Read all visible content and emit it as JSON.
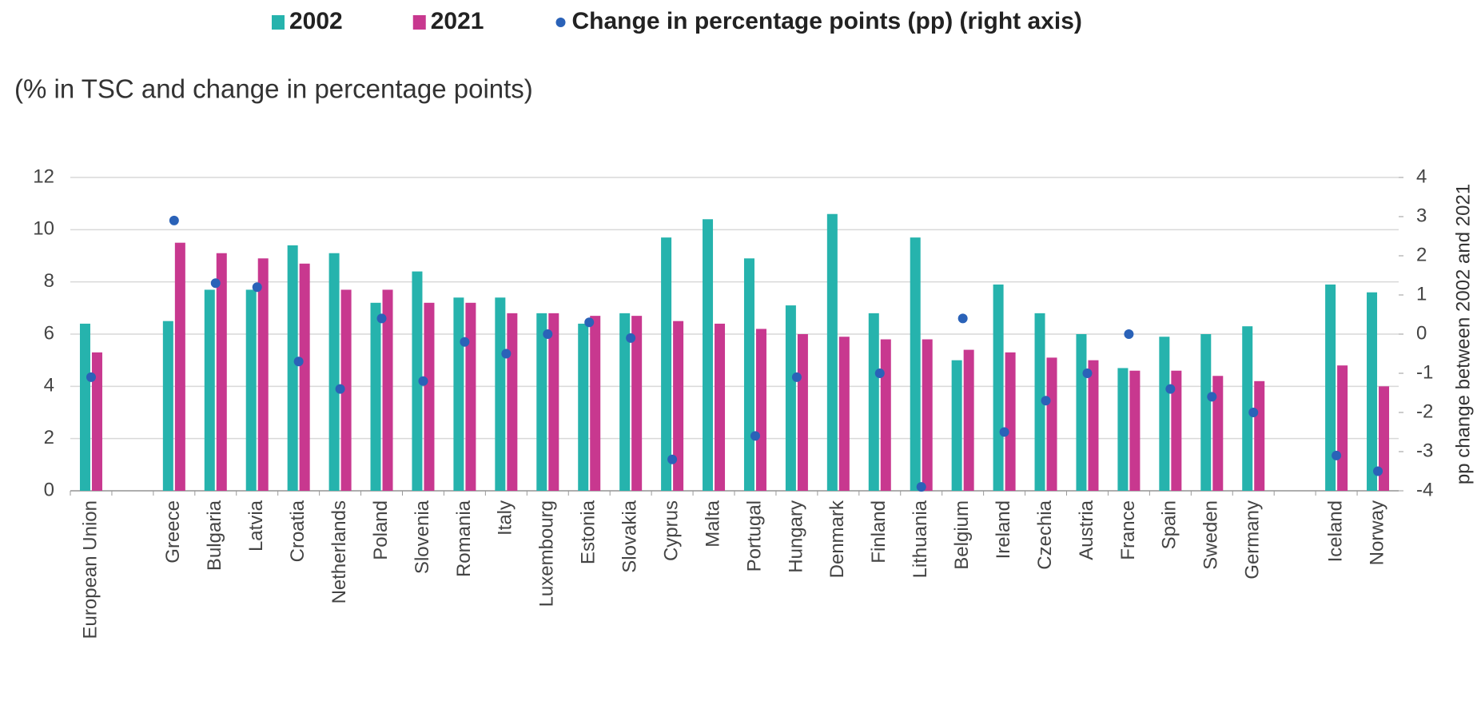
{
  "chart_data": {
    "type": "bar",
    "subtitle": "(% in TSC and change in percentage points)",
    "y2label": "pp change between 2002 and 2021",
    "categories": [
      "European Union",
      null,
      "Greece",
      "Bulgaria",
      "Latvia",
      "Croatia",
      "Netherlands",
      "Poland",
      "Slovenia",
      "Romania",
      "Italy",
      "Luxembourg",
      "Estonia",
      "Slovakia",
      "Cyprus",
      "Malta",
      "Portugal",
      "Hungary",
      "Denmark",
      "Finland",
      "Lithuania",
      "Belgium",
      "Ireland",
      "Czechia",
      "Austria",
      "France",
      "Spain",
      "Sweden",
      "Germany",
      null,
      "Iceland",
      "Norway"
    ],
    "series": [
      {
        "name": "2002",
        "color": "#26b3ad",
        "values": [
          6.4,
          null,
          6.5,
          7.7,
          7.7,
          9.4,
          9.1,
          7.2,
          8.4,
          7.4,
          7.4,
          6.8,
          6.4,
          6.8,
          9.7,
          10.4,
          8.9,
          7.1,
          10.6,
          6.8,
          9.7,
          5.0,
          7.9,
          6.8,
          6.0,
          4.7,
          5.9,
          6.0,
          6.3,
          null,
          7.9,
          7.6
        ]
      },
      {
        "name": "2021",
        "color": "#c8388f",
        "values": [
          5.3,
          null,
          9.5,
          9.1,
          8.9,
          8.7,
          7.7,
          7.7,
          7.2,
          7.2,
          6.8,
          6.8,
          6.7,
          6.7,
          6.5,
          6.4,
          6.2,
          6.0,
          5.9,
          5.8,
          5.8,
          5.4,
          5.3,
          5.1,
          5.0,
          4.6,
          4.6,
          4.4,
          4.2,
          null,
          4.8,
          4.0
        ]
      },
      {
        "name": "Change in percentage points (pp) (right axis)",
        "color": "#2a62b8",
        "axis": "y2",
        "values": [
          -1.1,
          null,
          2.9,
          1.3,
          1.2,
          -0.7,
          -1.4,
          0.4,
          -1.2,
          -0.2,
          -0.5,
          0.0,
          0.3,
          -0.1,
          -3.2,
          null,
          -2.6,
          -1.1,
          null,
          -1.0,
          -3.9,
          0.4,
          -2.5,
          -1.7,
          -1.0,
          0.0,
          -1.4,
          -1.6,
          -2.0,
          null,
          -3.1,
          -3.5
        ]
      }
    ],
    "ylim": [
      0,
      12
    ],
    "yticks": [
      0,
      2,
      4,
      6,
      8,
      10,
      12
    ],
    "y2lim": [
      -4,
      4
    ],
    "y2ticks": [
      -4,
      -3,
      -2,
      -1,
      0,
      1,
      2,
      3,
      4
    ],
    "grid": true,
    "legend": "top"
  }
}
